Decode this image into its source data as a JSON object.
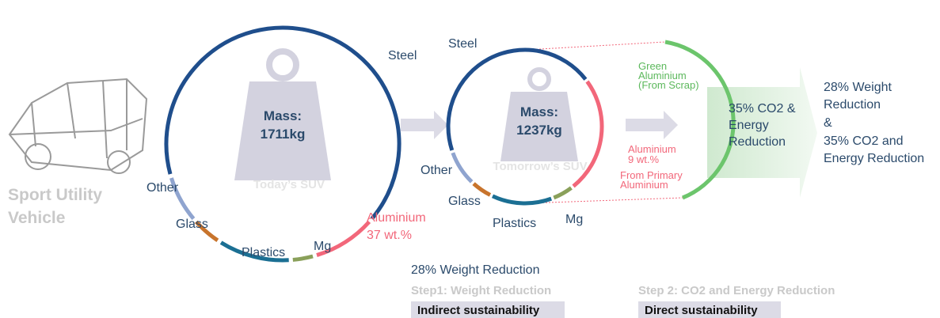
{
  "vehicle": {
    "lines": [
      "Sport Utility",
      "Vehicle"
    ]
  },
  "today": {
    "mass_label": "Mass:",
    "mass_value": "1711kg",
    "name": "Today’s SUV",
    "steel": "Steel",
    "other": "Other",
    "glass": "Glass",
    "plastics": "Plastics",
    "mg": "Mg",
    "aluminium": "Aluminium",
    "aluminium_share": "37 wt.%"
  },
  "tomorrow": {
    "mass_label": "Mass:",
    "mass_value": "1237kg",
    "name": "Tomorrow’s SUV",
    "steel": "Steel",
    "other": "Other",
    "glass": "Glass",
    "plastics": "Plastics",
    "mg": "Mg",
    "aluminium": "Aluminium",
    "aluminium_share": "9 wt.%",
    "primary_lines": [
      "From Primary",
      "Aluminium"
    ]
  },
  "green_aluminium": {
    "lines": [
      "Green",
      "Aluminium",
      "(From Scrap)"
    ]
  },
  "arrow_text": {
    "lines": [
      "35% CO2 &",
      "Energy",
      "Reduction"
    ]
  },
  "result": {
    "lines": [
      "28% Weight",
      "Reduction",
      "&",
      "35% CO2 and",
      "Energy Reduction"
    ]
  },
  "step1": {
    "result": "28% Weight Reduction",
    "title": "Step1: Weight Reduction",
    "tag": "Indirect sustainability"
  },
  "step2": {
    "title": "Step 2: CO2 and Energy Reduction",
    "tag": "Direct sustainability"
  }
}
